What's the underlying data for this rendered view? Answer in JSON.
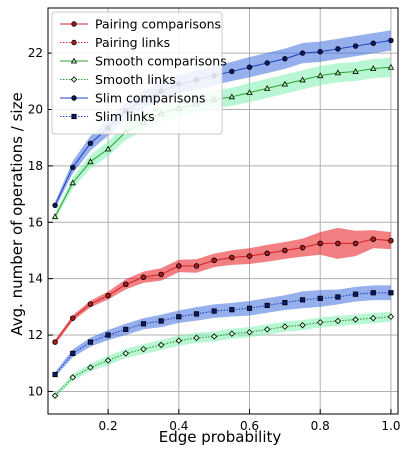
{
  "chart_data": {
    "type": "line",
    "title": "",
    "xlabel": "Edge probability",
    "ylabel": "Avg. number of operations / size",
    "xlim": [
      0.03,
      1.02
    ],
    "ylim": [
      9.2,
      23.6
    ],
    "grid": true,
    "legend_position": "top-left",
    "x_ticks": [
      0.2,
      0.4,
      0.6,
      0.8,
      1.0
    ],
    "x_tick_labels": [
      "0.2",
      "0.4",
      "0.6",
      "0.8",
      "1.0"
    ],
    "y_ticks": [
      10,
      12,
      14,
      16,
      18,
      20,
      22
    ],
    "y_tick_labels": [
      "10",
      "12",
      "14",
      "16",
      "18",
      "20",
      "22"
    ],
    "x": [
      0.05,
      0.1,
      0.15,
      0.2,
      0.25,
      0.3,
      0.35,
      0.4,
      0.45,
      0.5,
      0.55,
      0.6,
      0.65,
      0.7,
      0.75,
      0.8,
      0.85,
      0.9,
      0.95,
      1.0
    ],
    "series": [
      {
        "name": "Pairing comparisons",
        "color": "#d62728",
        "band_color": "#e8181c",
        "marker": "circle",
        "line_style": "solid",
        "values": [
          11.75,
          12.6,
          13.1,
          13.4,
          13.8,
          14.05,
          14.15,
          14.45,
          14.45,
          14.65,
          14.75,
          14.8,
          14.9,
          15.0,
          15.1,
          15.25,
          15.25,
          15.25,
          15.4,
          15.35
        ],
        "band": [
          0.08,
          0.1,
          0.12,
          0.14,
          0.18,
          0.2,
          0.22,
          0.22,
          0.24,
          0.24,
          0.26,
          0.28,
          0.3,
          0.3,
          0.32,
          0.4,
          0.55,
          0.45,
          0.32,
          0.3
        ]
      },
      {
        "name": "Pairing links",
        "color": "#d62728",
        "marker": "circle",
        "line_style": "dotted",
        "values": [
          11.75,
          12.6,
          13.1,
          13.4,
          13.8,
          14.05,
          14.15,
          14.45,
          14.45,
          14.65,
          14.75,
          14.8,
          14.9,
          15.0,
          15.1,
          15.25,
          15.25,
          15.25,
          15.4,
          15.35
        ]
      },
      {
        "name": "Smooth comparisons",
        "color": "#2ca02c",
        "band_color": "#80f0b0",
        "marker": "triangle",
        "line_style": "solid",
        "values": [
          16.2,
          17.4,
          18.15,
          18.6,
          19.2,
          19.55,
          19.85,
          20.05,
          20.2,
          20.35,
          20.45,
          20.6,
          20.75,
          20.9,
          21.05,
          21.2,
          21.3,
          21.35,
          21.45,
          21.5
        ],
        "band": [
          0.12,
          0.2,
          0.24,
          0.26,
          0.28,
          0.3,
          0.3,
          0.3,
          0.32,
          0.32,
          0.32,
          0.34,
          0.34,
          0.34,
          0.34,
          0.34,
          0.34,
          0.34,
          0.34,
          0.34
        ]
      },
      {
        "name": "Smooth links",
        "color": "#2ca02c",
        "band_color": "#80f0b0",
        "marker": "diamond",
        "line_style": "dotted",
        "values": [
          9.85,
          10.5,
          10.85,
          11.1,
          11.35,
          11.5,
          11.65,
          11.8,
          11.9,
          11.95,
          12.05,
          12.1,
          12.2,
          12.3,
          12.35,
          12.45,
          12.5,
          12.55,
          12.6,
          12.65
        ],
        "band": [
          0.08,
          0.12,
          0.14,
          0.16,
          0.16,
          0.18,
          0.18,
          0.18,
          0.18,
          0.18,
          0.18,
          0.18,
          0.18,
          0.18,
          0.18,
          0.18,
          0.18,
          0.18,
          0.18,
          0.18
        ]
      },
      {
        "name": "Slim comparisons",
        "color": "#1f3fbf",
        "band_color": "#3f6fe0",
        "marker": "circle",
        "line_style": "solid",
        "values": [
          16.6,
          17.95,
          18.8,
          19.35,
          19.95,
          20.35,
          20.65,
          20.9,
          21.05,
          21.2,
          21.35,
          21.5,
          21.65,
          21.8,
          22.0,
          22.05,
          22.15,
          22.25,
          22.35,
          22.45
        ],
        "band": [
          0.12,
          0.22,
          0.26,
          0.28,
          0.3,
          0.32,
          0.32,
          0.32,
          0.34,
          0.34,
          0.34,
          0.36,
          0.36,
          0.36,
          0.36,
          0.36,
          0.36,
          0.36,
          0.36,
          0.36
        ]
      },
      {
        "name": "Slim links",
        "color": "#1f3fbf",
        "band_color": "#3f6fe0",
        "marker": "square",
        "line_style": "dotted",
        "values": [
          10.6,
          11.35,
          11.75,
          12.0,
          12.2,
          12.4,
          12.5,
          12.65,
          12.75,
          12.85,
          12.9,
          12.95,
          13.05,
          13.15,
          13.25,
          13.3,
          13.35,
          13.45,
          13.5,
          13.5
        ],
        "band": [
          0.08,
          0.14,
          0.16,
          0.18,
          0.2,
          0.2,
          0.22,
          0.22,
          0.24,
          0.24,
          0.24,
          0.26,
          0.26,
          0.26,
          0.3,
          0.3,
          0.26,
          0.26,
          0.26,
          0.26
        ]
      }
    ]
  }
}
